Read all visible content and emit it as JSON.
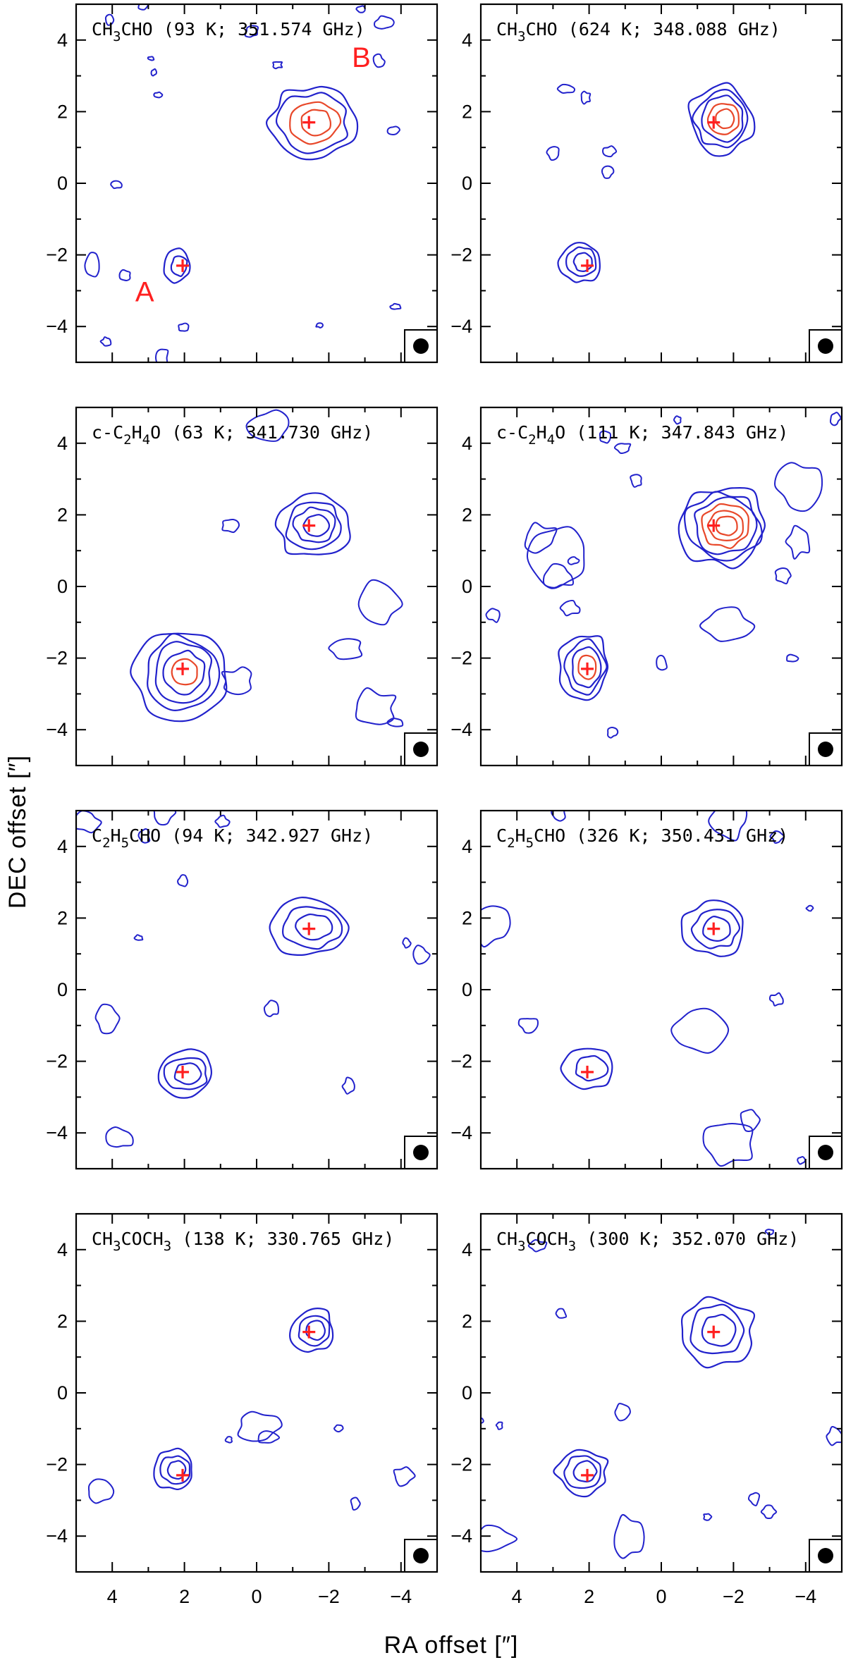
{
  "chart_data": {
    "type": "contour",
    "layout": "4 rows x 2 columns",
    "xlabel": "RA offset [″]",
    "ylabel": "DEC offset [″]",
    "xlim": [
      5,
      -5
    ],
    "ylim": [
      -5,
      5
    ],
    "x_ticks": [
      4,
      2,
      0,
      -2,
      -4
    ],
    "y_ticks": [
      4,
      2,
      0,
      -2,
      -4
    ],
    "x_ticklabels": [
      "4",
      "2",
      "0",
      "−2",
      "−4"
    ],
    "y_ticklabels": [
      "4",
      "2",
      "0",
      "−2",
      "−4"
    ],
    "markers": [
      {
        "name": "A",
        "x": 2.05,
        "y": -2.3
      },
      {
        "name": "B",
        "x": -1.45,
        "y": 1.7
      }
    ],
    "source_labels": [
      {
        "text": "A",
        "panel": 0,
        "x": 3.1,
        "y": -3.3
      },
      {
        "text": "B",
        "panel": 0,
        "x": -2.9,
        "y": 3.25
      }
    ],
    "colors": {
      "contour": "#2222cc",
      "high_contour": "#e8482a",
      "marker": "#ff2020",
      "label": "#ff2020"
    },
    "panels": [
      {
        "title_main": "CH",
        "title_sub1": "3",
        "title_mid": "CHO",
        "title_sub2": "",
        "title_rest": " (93 K; 351.574 GHz)",
        "peakA": {
          "x": 2.2,
          "y": -2.3,
          "levels": 2,
          "red": 0,
          "rx": 0.35,
          "ry": 0.45
        },
        "peakB": {
          "x": -1.55,
          "y": 1.7,
          "levels": 4,
          "red": 2,
          "rx": 1.2,
          "ry": 1.05
        },
        "noise": 22
      },
      {
        "title_main": "CH",
        "title_sub1": "3",
        "title_mid": "CHO",
        "title_sub2": "",
        "title_rest": " (624 K; 348.088 GHz)",
        "peakA": {
          "x": 2.25,
          "y": -2.2,
          "levels": 3,
          "red": 0,
          "rx": 0.55,
          "ry": 0.6
        },
        "peakB": {
          "x": -1.65,
          "y": 1.8,
          "levels": 5,
          "red": 2,
          "rx": 0.9,
          "ry": 0.95
        },
        "noise": 8
      },
      {
        "title_main": "c-C",
        "title_sub1": "2",
        "title_mid": "H",
        "title_sub2": "4",
        "title_rest": "O (63 K; 341.730 GHz)",
        "peakA": {
          "x": 2.1,
          "y": -2.4,
          "levels": 5,
          "red": 1,
          "rx": 1.25,
          "ry": 1.25
        },
        "peakB": {
          "x": -1.55,
          "y": 1.7,
          "levels": 4,
          "red": 0,
          "rx": 1.0,
          "ry": 0.85
        },
        "noise": 10
      },
      {
        "title_main": "c-C",
        "title_sub1": "2",
        "title_mid": "H",
        "title_sub2": "4",
        "title_rest": "O (111 K; 347.843 GHz)",
        "peakA": {
          "x": 2.15,
          "y": -2.25,
          "levels": 4,
          "red": 1,
          "rx": 0.7,
          "ry": 0.95
        },
        "peakB": {
          "x": -1.7,
          "y": 1.7,
          "levels": 6,
          "red": 3,
          "rx": 1.2,
          "ry": 1.1
        },
        "noise": 26
      },
      {
        "title_main": "C",
        "title_sub1": "2",
        "title_mid": "H",
        "title_sub2": "5",
        "title_rest": "CHO (94 K; 342.927 GHz)",
        "peakA": {
          "x": 2.0,
          "y": -2.35,
          "levels": 3,
          "red": 0,
          "rx": 0.8,
          "ry": 0.65
        },
        "peakB": {
          "x": -1.5,
          "y": 1.75,
          "levels": 3,
          "red": 0,
          "rx": 1.1,
          "ry": 0.8
        },
        "noise": 14
      },
      {
        "title_main": "C",
        "title_sub1": "2",
        "title_mid": "H",
        "title_sub2": "5",
        "title_rest": "CHO (326 K; 350.431 GHz)",
        "peakA": {
          "x": 2.0,
          "y": -2.2,
          "levels": 2,
          "red": 0,
          "rx": 0.7,
          "ry": 0.55
        },
        "peakB": {
          "x": -1.45,
          "y": 1.7,
          "levels": 3,
          "red": 0,
          "rx": 0.85,
          "ry": 0.75
        },
        "noise": 16
      },
      {
        "title_main": "CH",
        "title_sub1": "3",
        "title_mid": "COCH",
        "title_sub2": "3",
        "title_rest": " (138 K; 330.765 GHz)",
        "peakA": {
          "x": 2.3,
          "y": -2.15,
          "levels": 3,
          "red": 0,
          "rx": 0.55,
          "ry": 0.55
        },
        "peakB": {
          "x": -1.55,
          "y": 1.75,
          "levels": 3,
          "red": 0,
          "rx": 0.6,
          "ry": 0.6
        },
        "noise": 8
      },
      {
        "title_main": "CH",
        "title_sub1": "3",
        "title_mid": "COCH",
        "title_sub2": "3",
        "title_rest": " (300 K; 352.070 GHz)",
        "peakA": {
          "x": 2.2,
          "y": -2.2,
          "levels": 3,
          "red": 0,
          "rx": 0.7,
          "ry": 0.65
        },
        "peakB": {
          "x": -1.5,
          "y": 1.75,
          "levels": 3,
          "red": 0,
          "rx": 1.05,
          "ry": 0.95
        },
        "noise": 14
      }
    ]
  }
}
